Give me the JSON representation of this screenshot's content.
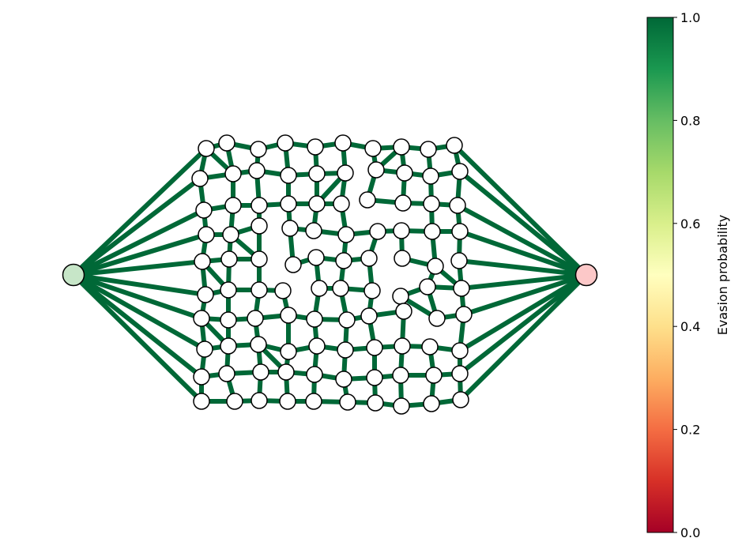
{
  "colorbar": {
    "label": "Evasion probability",
    "ticks": [
      "0.0",
      "0.2",
      "0.4",
      "0.6",
      "0.8",
      "1.0"
    ],
    "tick_values": [
      0.0,
      0.2,
      0.4,
      0.6,
      0.8,
      1.0
    ],
    "colormap": "RdYlGn",
    "stops": [
      "#a50026",
      "#d73027",
      "#f46d43",
      "#fdae61",
      "#fee08b",
      "#ffffbf",
      "#d9ef8b",
      "#a6d96a",
      "#66bd63",
      "#1a9850",
      "#006837"
    ]
  },
  "graph": {
    "edge_color": "#006837",
    "node_fill": "#ffffff",
    "source_node_fill": "#c7e6c8",
    "target_node_fill": "#fcc8c8",
    "edge_probability": 1.0
  }
}
